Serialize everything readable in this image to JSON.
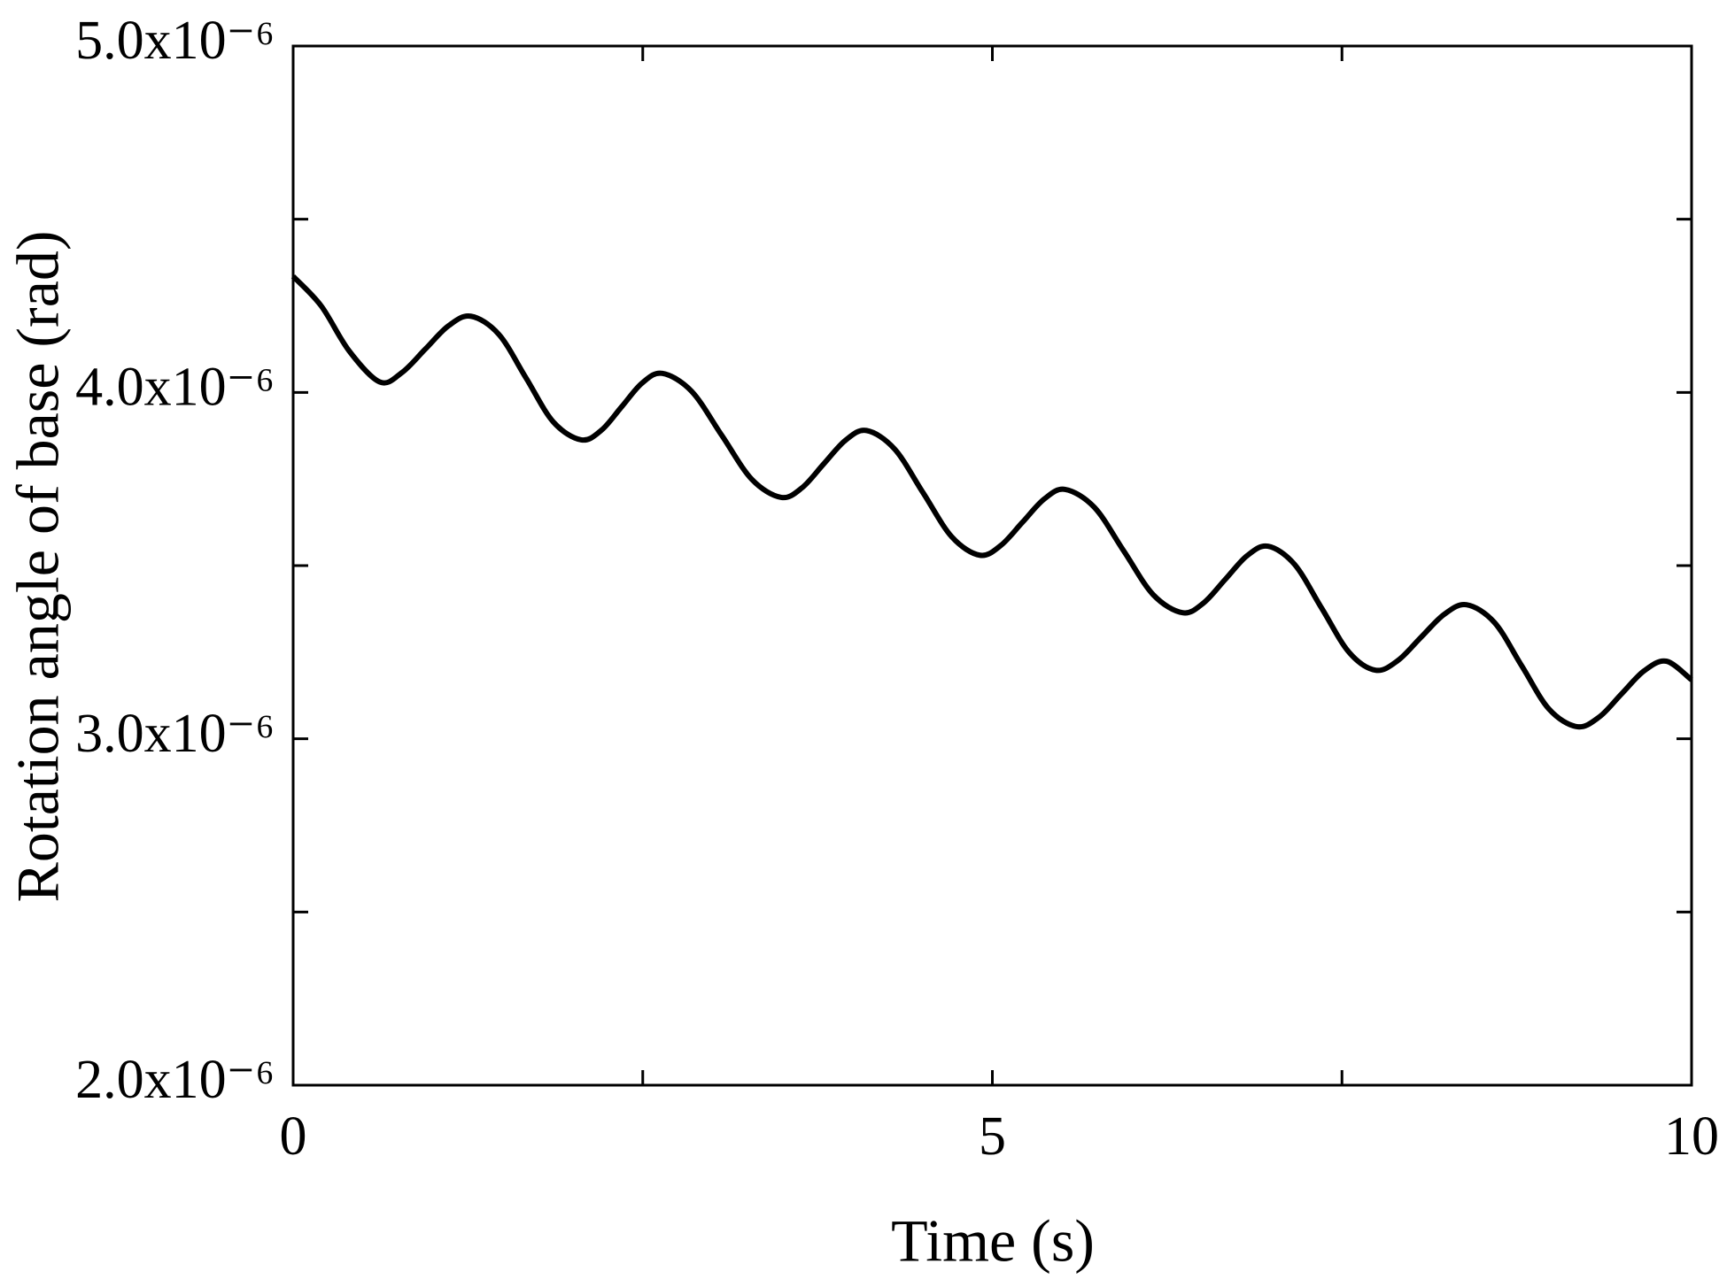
{
  "chart_data": {
    "type": "line",
    "x_label": "Time (s)",
    "y_label": "Rotation angle of base (rad)",
    "xlim": [
      0,
      10
    ],
    "xticks": [
      0,
      5,
      10
    ],
    "xminorticks": [
      2.5,
      7.5
    ],
    "ylim": [
      2e-06,
      5e-06
    ],
    "yticks": [
      {
        "value": 2e-06,
        "label": "2.0x10⁻⁶"
      },
      {
        "value": 3e-06,
        "label": "3.0x10⁻⁶"
      },
      {
        "value": 4e-06,
        "label": "4.0x10⁻⁶"
      },
      {
        "value": 5e-06,
        "label": "5.0x10⁻⁶"
      }
    ],
    "yminorticks": [
      2.5e-06,
      3.5e-06,
      4.5e-06
    ],
    "color": "#000000",
    "x": [
      0,
      0.2,
      0.4,
      0.62,
      0.78,
      0.945,
      1.11,
      1.27,
      1.47,
      1.665,
      1.86,
      2.06,
      2.205,
      2.35,
      2.495,
      2.64,
      2.85,
      3.065,
      3.28,
      3.49,
      3.64,
      3.795,
      3.95,
      4.1,
      4.3,
      4.505,
      4.71,
      4.91,
      5.06,
      5.215,
      5.37,
      5.52,
      5.73,
      5.94,
      6.15,
      6.36,
      6.51,
      6.665,
      6.82,
      6.97,
      7.16,
      7.355,
      7.55,
      7.74,
      7.9,
      8.065,
      8.23,
      8.39,
      8.59,
      8.785,
      8.98,
      9.18,
      9.34,
      9.5,
      9.66,
      9.82,
      10
    ],
    "values": [
      4.335e-06,
      4.25e-06,
      4.12e-06,
      4.03e-06,
      4.058e-06,
      4.125e-06,
      4.192e-06,
      4.22e-06,
      4.168e-06,
      4.042e-06,
      3.915e-06,
      3.863e-06,
      3.891e-06,
      3.959e-06,
      4.027e-06,
      4.055e-06,
      4.003e-06,
      3.876e-06,
      3.749e-06,
      3.697e-06,
      3.725e-06,
      3.794e-06,
      3.862e-06,
      3.89e-06,
      3.837e-06,
      3.71e-06,
      3.583e-06,
      3.53e-06,
      3.558e-06,
      3.625e-06,
      3.692e-06,
      3.72e-06,
      3.668e-06,
      3.542e-06,
      3.416e-06,
      3.364e-06,
      3.392e-06,
      3.46e-06,
      3.528e-06,
      3.556e-06,
      3.504e-06,
      3.377e-06,
      3.25e-06,
      3.198e-06,
      3.226e-06,
      3.293e-06,
      3.359e-06,
      3.387e-06,
      3.336e-06,
      3.211e-06,
      3.086e-06,
      3.035e-06,
      3.063e-06,
      3.13e-06,
      3.196e-06,
      3.224e-06,
      3.17e-06
    ]
  }
}
